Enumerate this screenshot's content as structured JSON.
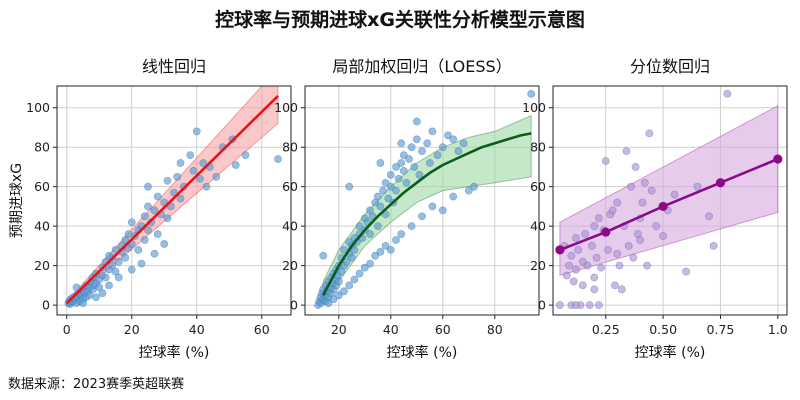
{
  "title": "控球率与预期进球xG关联性分析模型示意图",
  "source": "数据来源：2023赛季英超联赛",
  "ylabel": "预期进球xG",
  "colors": {
    "scatter_blue": "#5b9bd5",
    "linear_line": "#e8141c",
    "linear_band": "#f7a3a3",
    "loess_line": "#0b5d1e",
    "loess_band": "#9fd8a3",
    "quantile_line": "#8b0a8b",
    "quantile_band": "#d6a8de",
    "quantile_point": "#b58fd6"
  },
  "chart_data": [
    {
      "type": "scatter",
      "title": "线性回归",
      "xlabel": "控球率 (%)",
      "xlim": [
        -3,
        69
      ],
      "ylim": [
        -5,
        111
      ],
      "xticks": [
        0,
        20,
        40,
        60
      ],
      "yticks": [
        0,
        20,
        40,
        60,
        80,
        100
      ],
      "grid": true,
      "points": [
        [
          0.5,
          1
        ],
        [
          0.8,
          2
        ],
        [
          1,
          0.5
        ],
        [
          1.2,
          3
        ],
        [
          1.5,
          1.5
        ],
        [
          2,
          2
        ],
        [
          2,
          4
        ],
        [
          2.5,
          3
        ],
        [
          3,
          1
        ],
        [
          3,
          5
        ],
        [
          3.5,
          4
        ],
        [
          4,
          2
        ],
        [
          4,
          6
        ],
        [
          4.5,
          5
        ],
        [
          5,
          3
        ],
        [
          5,
          8
        ],
        [
          5.5,
          6
        ],
        [
          6,
          4
        ],
        [
          6,
          10
        ],
        [
          6.5,
          7
        ],
        [
          7,
          9
        ],
        [
          7,
          5
        ],
        [
          7.5,
          12
        ],
        [
          8,
          8
        ],
        [
          8,
          14
        ],
        [
          8.5,
          10
        ],
        [
          9,
          11
        ],
        [
          9,
          16
        ],
        [
          10,
          13
        ],
        [
          10,
          9
        ],
        [
          11,
          15
        ],
        [
          11,
          19
        ],
        [
          12,
          14
        ],
        [
          12,
          22
        ],
        [
          13,
          18
        ],
        [
          13,
          25
        ],
        [
          14,
          20
        ],
        [
          14,
          24
        ],
        [
          15,
          17
        ],
        [
          15,
          28
        ],
        [
          16,
          22
        ],
        [
          17,
          27
        ],
        [
          17,
          30
        ],
        [
          18,
          24
        ],
        [
          18,
          33
        ],
        [
          19,
          29
        ],
        [
          19,
          36
        ],
        [
          20,
          31
        ],
        [
          20,
          42
        ],
        [
          21,
          35
        ],
        [
          22,
          28
        ],
        [
          22,
          38
        ],
        [
          23,
          40
        ],
        [
          24,
          33
        ],
        [
          24,
          45
        ],
        [
          25,
          38
        ],
        [
          25,
          50
        ],
        [
          26,
          42
        ],
        [
          27,
          48
        ],
        [
          28,
          36
        ],
        [
          28,
          55
        ],
        [
          29,
          46
        ],
        [
          30,
          52
        ],
        [
          31,
          44
        ],
        [
          31,
          63
        ],
        [
          32,
          50
        ],
        [
          33,
          57
        ],
        [
          34,
          65
        ],
        [
          35,
          72
        ],
        [
          36,
          60
        ],
        [
          38,
          76
        ],
        [
          39,
          68
        ],
        [
          40,
          88
        ],
        [
          41,
          64
        ],
        [
          42,
          72
        ],
        [
          44,
          70
        ],
        [
          46,
          65
        ],
        [
          48,
          80
        ],
        [
          51,
          84
        ],
        [
          52,
          71
        ],
        [
          55,
          76
        ],
        [
          65,
          74
        ],
        [
          3,
          9
        ],
        [
          5,
          1
        ],
        [
          9,
          4
        ],
        [
          11,
          6
        ],
        [
          13,
          10
        ],
        [
          16,
          14
        ],
        [
          20,
          18
        ],
        [
          23,
          21
        ],
        [
          27,
          26
        ],
        [
          30,
          31
        ],
        [
          25,
          60
        ],
        [
          35,
          54
        ],
        [
          43,
          60
        ]
      ],
      "series": [
        {
          "name": "",
          "type": "line",
          "x": [
            0,
            65
          ],
          "y": [
            1,
            106
          ]
        },
        {
          "name": "",
          "type": "band",
          "x": [
            0,
            65
          ],
          "lower": [
            0,
            92
          ],
          "upper": [
            2,
            120
          ]
        }
      ]
    },
    {
      "type": "scatter",
      "title": "局部加权回归（LOESS）",
      "xlabel": "控球率 (%)",
      "xlim": [
        7,
        97
      ],
      "ylim": [
        -5,
        111
      ],
      "xticks": [
        20,
        40,
        60,
        80
      ],
      "yticks": [
        0,
        20,
        40,
        60,
        80,
        100
      ],
      "grid": true,
      "points": [
        [
          12,
          0
        ],
        [
          12.5,
          2
        ],
        [
          13,
          1
        ],
        [
          13,
          4
        ],
        [
          13.5,
          6
        ],
        [
          14,
          3
        ],
        [
          14,
          8
        ],
        [
          14.5,
          5
        ],
        [
          15,
          2
        ],
        [
          15,
          10
        ],
        [
          15.5,
          7
        ],
        [
          16,
          12
        ],
        [
          16,
          4
        ],
        [
          16.5,
          9
        ],
        [
          17,
          14
        ],
        [
          17,
          6
        ],
        [
          17.5,
          11
        ],
        [
          18,
          16
        ],
        [
          18,
          8
        ],
        [
          18.5,
          13
        ],
        [
          19,
          18
        ],
        [
          19,
          10
        ],
        [
          19.5,
          15
        ],
        [
          20,
          20
        ],
        [
          20,
          12
        ],
        [
          21,
          17
        ],
        [
          21,
          24
        ],
        [
          22,
          20
        ],
        [
          22,
          28
        ],
        [
          23,
          22
        ],
        [
          24,
          26
        ],
        [
          24,
          32
        ],
        [
          25,
          30
        ],
        [
          25,
          24
        ],
        [
          26,
          34
        ],
        [
          26,
          28
        ],
        [
          27,
          32
        ],
        [
          28,
          36
        ],
        [
          28,
          40
        ],
        [
          29,
          34
        ],
        [
          30,
          38
        ],
        [
          30,
          44
        ],
        [
          31,
          42
        ],
        [
          32,
          36
        ],
        [
          32,
          48
        ],
        [
          33,
          45
        ],
        [
          34,
          52
        ],
        [
          35,
          40
        ],
        [
          35,
          55
        ],
        [
          36,
          50
        ],
        [
          37,
          58
        ],
        [
          38,
          46
        ],
        [
          38,
          62
        ],
        [
          39,
          54
        ],
        [
          40,
          60
        ],
        [
          40,
          66
        ],
        [
          41,
          52
        ],
        [
          42,
          58
        ],
        [
          42,
          70
        ],
        [
          43,
          64
        ],
        [
          44,
          72
        ],
        [
          45,
          68
        ],
        [
          45,
          76
        ],
        [
          46,
          62
        ],
        [
          47,
          74
        ],
        [
          48,
          80
        ],
        [
          49,
          70
        ],
        [
          50,
          84
        ],
        [
          51,
          66
        ],
        [
          52,
          78
        ],
        [
          54,
          82
        ],
        [
          55,
          72
        ],
        [
          56,
          88
        ],
        [
          58,
          76
        ],
        [
          60,
          80
        ],
        [
          62,
          86
        ],
        [
          64,
          84
        ],
        [
          66,
          78
        ],
        [
          68,
          82
        ],
        [
          72,
          60
        ],
        [
          94,
          107
        ],
        [
          14,
          25
        ],
        [
          16,
          1
        ],
        [
          18,
          3
        ],
        [
          20,
          5
        ],
        [
          22,
          7
        ],
        [
          24,
          10
        ],
        [
          26,
          13
        ],
        [
          28,
          16
        ],
        [
          30,
          19
        ],
        [
          32,
          21
        ],
        [
          34,
          25
        ],
        [
          36,
          27
        ],
        [
          38,
          30
        ],
        [
          40,
          28
        ],
        [
          42,
          33
        ],
        [
          44,
          36
        ],
        [
          48,
          40
        ],
        [
          52,
          45
        ],
        [
          56,
          50
        ],
        [
          60,
          48
        ],
        [
          64,
          55
        ],
        [
          70,
          58
        ],
        [
          24,
          60
        ],
        [
          36,
          72
        ],
        [
          44,
          82
        ],
        [
          50,
          93
        ]
      ],
      "series": [
        {
          "name": "",
          "type": "line",
          "x": [
            14,
            94
          ],
          "y": [
            5,
            87
          ],
          "curve_x": [
            14,
            20,
            25,
            30,
            35,
            40,
            45,
            50,
            55,
            60,
            65,
            70,
            75,
            80,
            85,
            90,
            94
          ],
          "curve_y": [
            5,
            20,
            30,
            38,
            45,
            51,
            57,
            62,
            67,
            71,
            74,
            77,
            80,
            82,
            84,
            86,
            87
          ]
        },
        {
          "name": "",
          "type": "band",
          "x": [
            14,
            20,
            30,
            40,
            50,
            60,
            70,
            80,
            94
          ],
          "lower": [
            0,
            12,
            30,
            42,
            52,
            58,
            60,
            62,
            65
          ],
          "upper": [
            12,
            28,
            46,
            60,
            72,
            80,
            85,
            88,
            96
          ]
        }
      ]
    },
    {
      "type": "scatter",
      "title": "分位数回归",
      "xlabel": "控球率 (%)",
      "xlim": [
        0.02,
        1.04
      ],
      "ylim": [
        -5,
        111
      ],
      "xticks": [
        0.25,
        0.5,
        0.75,
        1.0
      ],
      "xtick_labels": [
        "0.25",
        "0.50",
        "0.75",
        "1.0"
      ],
      "yticks": [
        0,
        20,
        40,
        60,
        80,
        100
      ],
      "grid": true,
      "points": [
        [
          0.05,
          0
        ],
        [
          0.07,
          30
        ],
        [
          0.08,
          15
        ],
        [
          0.09,
          20
        ],
        [
          0.1,
          0
        ],
        [
          0.1,
          25
        ],
        [
          0.11,
          12
        ],
        [
          0.12,
          34
        ],
        [
          0.12,
          18
        ],
        [
          0.13,
          28
        ],
        [
          0.14,
          0
        ],
        [
          0.15,
          22
        ],
        [
          0.15,
          10
        ],
        [
          0.16,
          36
        ],
        [
          0.17,
          20
        ],
        [
          0.18,
          0
        ],
        [
          0.19,
          30
        ],
        [
          0.2,
          14
        ],
        [
          0.2,
          40
        ],
        [
          0.21,
          24
        ],
        [
          0.22,
          0
        ],
        [
          0.22,
          44
        ],
        [
          0.23,
          19
        ],
        [
          0.24,
          38
        ],
        [
          0.25,
          73
        ],
        [
          0.26,
          28
        ],
        [
          0.27,
          46
        ],
        [
          0.28,
          48
        ],
        [
          0.29,
          10
        ],
        [
          0.3,
          52
        ],
        [
          0.31,
          20
        ],
        [
          0.32,
          8
        ],
        [
          0.33,
          40
        ],
        [
          0.34,
          78
        ],
        [
          0.35,
          30
        ],
        [
          0.36,
          60
        ],
        [
          0.37,
          24
        ],
        [
          0.38,
          70
        ],
        [
          0.39,
          36
        ],
        [
          0.4,
          44
        ],
        [
          0.41,
          52
        ],
        [
          0.42,
          62
        ],
        [
          0.43,
          20
        ],
        [
          0.44,
          87
        ],
        [
          0.45,
          58
        ],
        [
          0.47,
          40
        ],
        [
          0.5,
          35
        ],
        [
          0.52,
          48
        ],
        [
          0.55,
          56
        ],
        [
          0.6,
          17
        ],
        [
          0.65,
          60
        ],
        [
          0.7,
          45
        ],
        [
          0.72,
          30
        ],
        [
          0.78,
          107
        ],
        [
          0.12,
          0
        ],
        [
          0.2,
          8
        ],
        [
          0.3,
          26
        ],
        [
          0.4,
          33
        ]
      ],
      "series": [
        {
          "name": "",
          "type": "line",
          "x": [
            0.05,
            0.25,
            0.5,
            0.75,
            1.0
          ],
          "y": [
            28,
            37,
            50,
            62,
            74
          ]
        },
        {
          "name": "",
          "type": "band",
          "x": [
            0.05,
            1.0
          ],
          "lower": [
            15,
            47
          ],
          "upper": [
            42,
            101
          ]
        }
      ]
    }
  ]
}
